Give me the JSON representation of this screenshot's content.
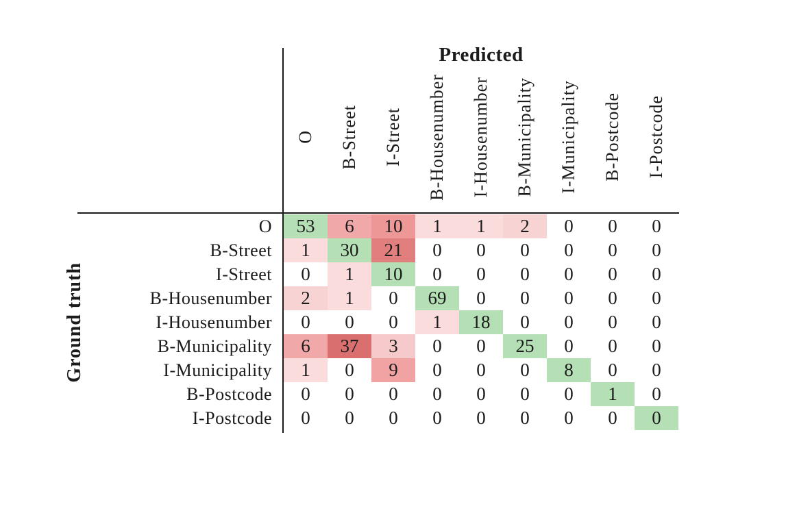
{
  "chart_data": {
    "type": "heatmap",
    "title": "Predicted",
    "xlabel": "Predicted",
    "ylabel": "Ground truth",
    "x_categories": [
      "O",
      "B-Street",
      "I-Street",
      "B-Housenumber",
      "I-Housenumber",
      "B-Municipality",
      "I-Municipality",
      "B-Postcode",
      "I-Postcode"
    ],
    "y_categories": [
      "O",
      "B-Street",
      "I-Street",
      "B-Housenumber",
      "I-Housenumber",
      "B-Municipality",
      "I-Municipality",
      "B-Postcode",
      "I-Postcode"
    ],
    "matrix": [
      [
        53,
        6,
        10,
        1,
        1,
        2,
        0,
        0,
        0
      ],
      [
        1,
        30,
        21,
        0,
        0,
        0,
        0,
        0,
        0
      ],
      [
        0,
        1,
        10,
        0,
        0,
        0,
        0,
        0,
        0
      ],
      [
        2,
        1,
        0,
        69,
        0,
        0,
        0,
        0,
        0
      ],
      [
        0,
        0,
        0,
        1,
        18,
        0,
        0,
        0,
        0
      ],
      [
        6,
        37,
        3,
        0,
        0,
        25,
        0,
        0,
        0
      ],
      [
        1,
        0,
        9,
        0,
        0,
        0,
        8,
        0,
        0
      ],
      [
        0,
        0,
        0,
        0,
        0,
        0,
        0,
        1,
        0
      ],
      [
        0,
        0,
        0,
        0,
        0,
        0,
        0,
        0,
        0
      ]
    ],
    "legend": "none",
    "grid": false,
    "colors": {
      "background": "#ffffff",
      "text": "#1b1b1b",
      "axis_line": "#1a1a1a",
      "diagonal_correct_green": "#b5dfb5",
      "off_diagonal_zero": "#ffffff",
      "error_red_by_value": {
        "1": "#fadcdc",
        "2": "#f8d3d3",
        "3": "#f6caca",
        "6": "#f1a8a8",
        "9": "#f1a3a3",
        "10": "#ee9797",
        "21": "#e17e7e",
        "37": "#d96f6f"
      }
    }
  }
}
